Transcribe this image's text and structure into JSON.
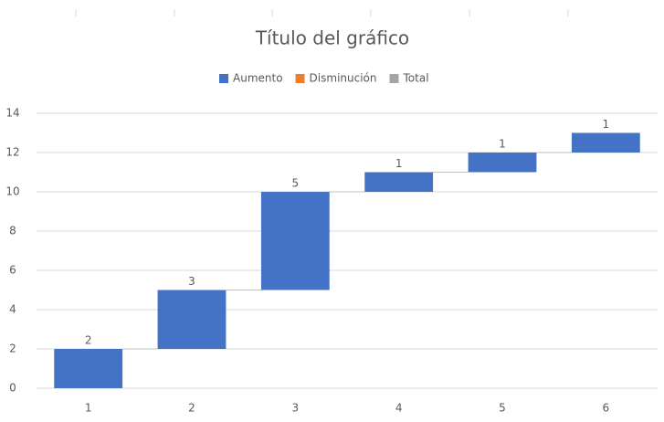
{
  "chart_data": {
    "type": "waterfall",
    "title": "Título del gráfico",
    "categories": [
      "1",
      "2",
      "3",
      "4",
      "5",
      "6"
    ],
    "values": [
      2,
      3,
      5,
      1,
      1,
      1
    ],
    "legend": [
      {
        "name": "Aumento",
        "color": "#4472c4"
      },
      {
        "name": "Disminución",
        "color": "#ed7d31"
      },
      {
        "name": "Total",
        "color": "#a5a5a5"
      }
    ],
    "ylim": [
      0,
      14
    ],
    "yticks": [
      0,
      2,
      4,
      6,
      8,
      10,
      12,
      14
    ],
    "grid": true
  }
}
